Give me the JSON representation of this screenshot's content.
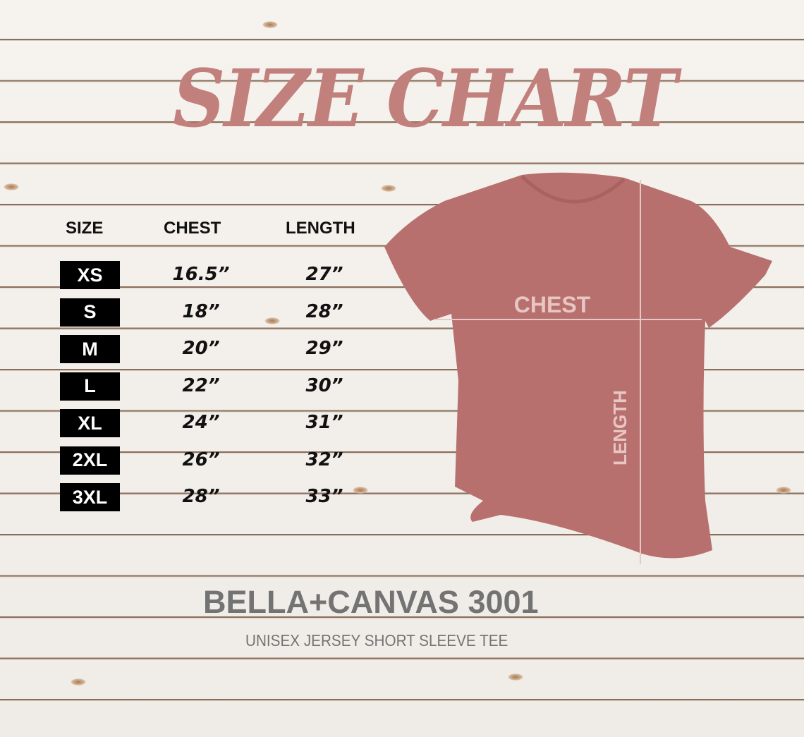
{
  "title": "SIZE CHART",
  "headers": {
    "size": "SIZE",
    "chest": "CHEST",
    "length": "LENGTH"
  },
  "rows": [
    {
      "size": "XS",
      "chest": "16.5”",
      "length": "27”"
    },
    {
      "size": "S",
      "chest": "18”",
      "length": "28”"
    },
    {
      "size": "M",
      "chest": "20”",
      "length": "29”"
    },
    {
      "size": "L",
      "chest": "22”",
      "length": "30”"
    },
    {
      "size": "XL",
      "chest": "24”",
      "length": "31”"
    },
    {
      "size": "2XL",
      "chest": "26”",
      "length": "32”"
    },
    {
      "size": "3XL",
      "chest": "28”",
      "length": "33”"
    }
  ],
  "shirt": {
    "chest_label": "CHEST",
    "length_label": "LENGTH",
    "color": "#b7706e"
  },
  "brand": "BELLA+CANVAS 3001",
  "subtitle": "UNISEX JERSEY SHORT SLEEVE TEE",
  "colors": {
    "title": "#c2807c",
    "brand": "#737373"
  }
}
